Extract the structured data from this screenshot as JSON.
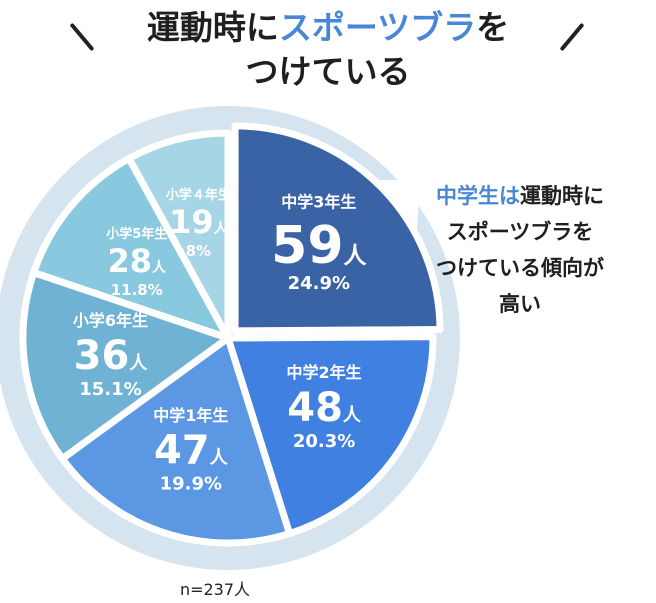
{
  "header": {
    "title_part1": "運動時に",
    "title_accent": "スポーツブラ",
    "title_part2": "を",
    "title_line2": "つけている"
  },
  "callout": {
    "accent": "中学生は",
    "line1_rest": "運動時に",
    "line2": "スポーツブラを",
    "line3": "つけている傾向が",
    "line4": "高い"
  },
  "footnote": "n=237人",
  "colors": {
    "accent": "#4a86d6",
    "ring": "#d6e4f0",
    "separator": "#ffffff"
  },
  "chart_data": {
    "type": "pie",
    "n": 237,
    "count_unit": "人",
    "slices": [
      {
        "label": "中学3年生",
        "count": 59,
        "percent": "24.9%",
        "color": "#3a63a6",
        "exploded": true
      },
      {
        "label": "中学2年生",
        "count": 48,
        "percent": "20.3%",
        "color": "#3f80e0",
        "exploded": false
      },
      {
        "label": "中学1年生",
        "count": 47,
        "percent": "19.9%",
        "color": "#5b97e2",
        "exploded": false
      },
      {
        "label": "小学6年生",
        "count": 36,
        "percent": "15.1%",
        "color": "#6fb2d4",
        "exploded": false
      },
      {
        "label": "小学5年生",
        "count": 28,
        "percent": "11.8%",
        "color": "#88c9df",
        "exploded": false
      },
      {
        "label": "小学４年生",
        "count": 19,
        "percent": "8%",
        "color": "#a6d6e6",
        "exploded": false
      }
    ]
  }
}
